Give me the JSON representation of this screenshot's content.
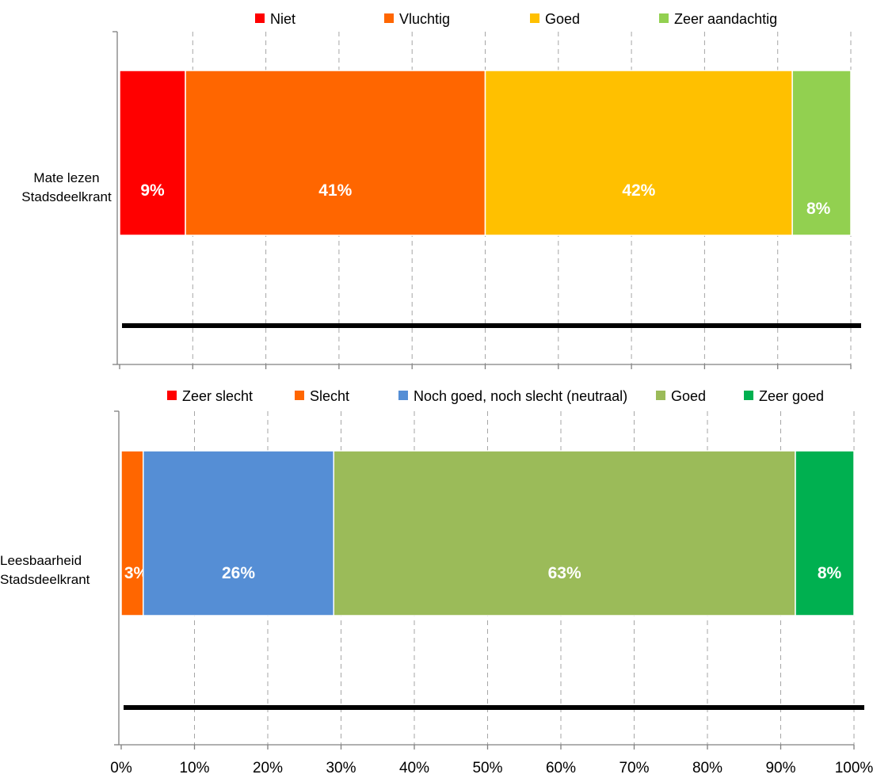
{
  "chart_data": [
    {
      "type": "bar",
      "orientation": "horizontal",
      "stacked": true,
      "category": [
        "Mate lezen",
        "Stadsdeelkrant"
      ],
      "series": [
        {
          "name": "Niet",
          "values": [
            9
          ],
          "color": "#FF0000"
        },
        {
          "name": "Vluchtig",
          "values": [
            41
          ],
          "color": "#FF6600"
        },
        {
          "name": "Goed",
          "values": [
            42
          ],
          "color": "#FFC000"
        },
        {
          "name": "Zeer aandachtig",
          "values": [
            8
          ],
          "color": "#92D050"
        }
      ],
      "data_labels": [
        "9%",
        "41%",
        "42%",
        "8%"
      ],
      "xlim": [
        0,
        100
      ],
      "grid": true,
      "legend_position": "top"
    },
    {
      "type": "bar",
      "orientation": "horizontal",
      "stacked": true,
      "category": [
        "Leesbaarheid",
        "Stadsdeelkrant"
      ],
      "series": [
        {
          "name": "Zeer slecht",
          "values": [
            0
          ],
          "color": "#FF0000"
        },
        {
          "name": "Slecht",
          "values": [
            3
          ],
          "color": "#FF6600"
        },
        {
          "name": "Noch goed, noch slecht (neutraal)",
          "values": [
            26
          ],
          "color": "#558ED5"
        },
        {
          "name": "Goed",
          "values": [
            63
          ],
          "color": "#9BBB59"
        },
        {
          "name": "Zeer goed",
          "values": [
            8
          ],
          "color": "#00B050"
        }
      ],
      "data_labels": [
        "",
        "3%",
        "26%",
        "63%",
        "8%"
      ],
      "xlim": [
        0,
        100
      ],
      "x_ticks": [
        "0%",
        "10%",
        "20%",
        "30%",
        "40%",
        "50%",
        "60%",
        "70%",
        "80%",
        "90%",
        "100%"
      ],
      "grid": true,
      "legend_position": "top"
    }
  ]
}
